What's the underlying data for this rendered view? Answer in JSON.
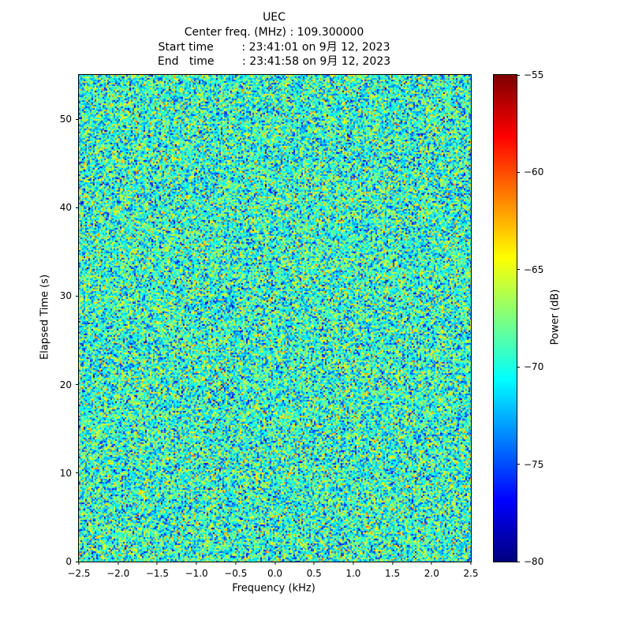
{
  "header": {
    "title": "UEC",
    "center_freq_line": "Center freq. (MHz) : 109.300000",
    "start_time_line": "Start time        : 23:41:01 on 9月 12, 2023",
    "end_time_line": "End   time        : 23:41:58 on 9月 12, 2023"
  },
  "axes": {
    "xlabel": "Frequency (kHz)",
    "ylabel": "Elapsed Time (s)",
    "colorbar_label": "Power (dB)"
  },
  "chart_data": {
    "type": "heatmap",
    "title": "UEC",
    "center_freq_mhz": 109.3,
    "start_time": "23:41:01 on 9月 12, 2023",
    "end_time": "23:41:58 on 9月 12, 2023",
    "xlabel": "Frequency (kHz)",
    "ylabel": "Elapsed Time (s)",
    "xlim": [
      -2.5,
      2.5
    ],
    "ylim": [
      0,
      55
    ],
    "xtick_labels": [
      "−2.5",
      "−2.0",
      "−1.5",
      "−1.0",
      "−0.5",
      "0.0",
      "0.5",
      "1.0",
      "1.5",
      "2.0",
      "2.5"
    ],
    "ytick_labels": [
      "0",
      "10",
      "20",
      "30",
      "40",
      "50"
    ],
    "colormap": "jet",
    "colorbar": {
      "label": "Power (dB)",
      "vmin": -80,
      "vmax": -55,
      "tick_labels": [
        "−55",
        "−60",
        "−65",
        "−70",
        "−75",
        "−80"
      ]
    },
    "noise": {
      "mean_db": -69.5,
      "std_db": 3.5,
      "seed": 7
    },
    "description": "Broadband noise spectrogram; no coherent signal, values mostly −75 to −62 dB with sparse peaks near −58 dB"
  }
}
